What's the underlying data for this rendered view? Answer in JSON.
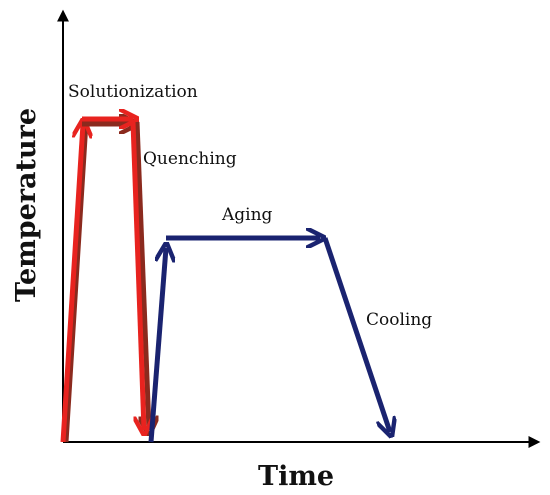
{
  "axes": {
    "x_label": "Time",
    "y_label": "Temperature",
    "axis_color": "#000000"
  },
  "stages": {
    "solutionization": "Solutionization",
    "quenching": "Quenching",
    "aging": "Aging",
    "cooling": "Cooling"
  },
  "colors": {
    "solution_treatment": "#e8231f",
    "solution_treatment_shadow": "#8b2a1e",
    "aging_treatment": "#1a2370"
  }
}
